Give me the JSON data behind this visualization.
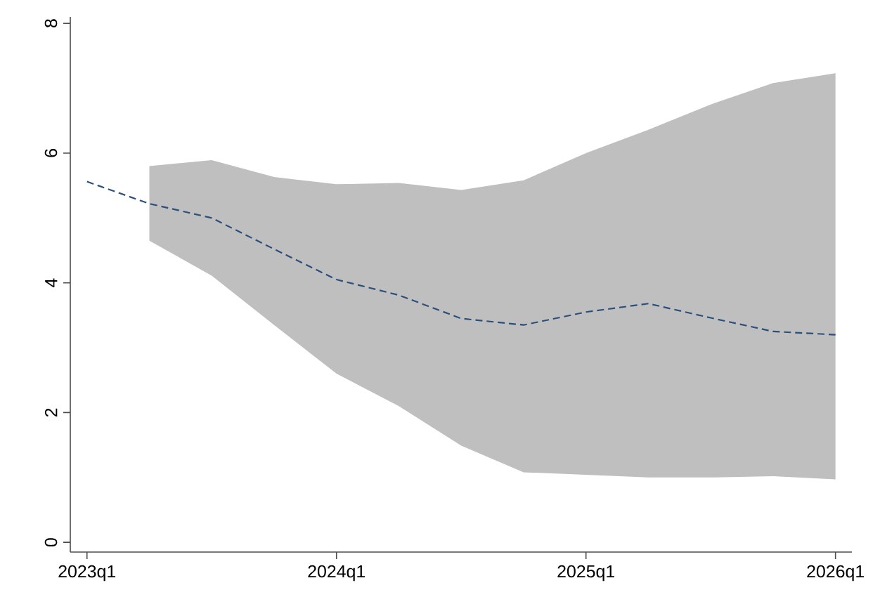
{
  "chart_data": {
    "type": "line",
    "x": [
      "2023-01",
      "2023-04",
      "2023-07",
      "2023-10",
      "2024-01",
      "2024-04",
      "2024-07",
      "2024-10",
      "2025-01",
      "2025-04",
      "2025-07",
      "2025-10",
      "2026-01"
    ],
    "series": [
      {
        "color": "#2b4f7a",
        "line_style": "dashed",
        "values": [
          5.56,
          5.22,
          5.0,
          4.52,
          4.05,
          3.81,
          3.45,
          3.35,
          3.55,
          3.68,
          3.46,
          3.25,
          3.2
        ],
        "lower": [
          null,
          4.65,
          4.11,
          3.35,
          2.6,
          2.1,
          1.49,
          1.08,
          1.04,
          1.0,
          1.0,
          1.02,
          0.97
        ],
        "upper": [
          null,
          5.8,
          5.89,
          5.63,
          5.52,
          5.54,
          5.43,
          5.58,
          6.0,
          6.36,
          6.75,
          7.08,
          7.23
        ]
      }
    ],
    "xlim": [
      "2022-12-07",
      "2026-01-25"
    ],
    "ylim": [
      -0.15,
      8.1
    ],
    "xticks": [
      {
        "value": "2023-01",
        "label": "2023q1"
      },
      {
        "value": "2024-01",
        "label": "2024q1"
      },
      {
        "value": "2025-01",
        "label": "2025q1"
      },
      {
        "value": "2026-01",
        "label": "2026q1"
      }
    ],
    "yticks": [
      0,
      2,
      4,
      6,
      8
    ],
    "grid": false,
    "marker": "none"
  }
}
